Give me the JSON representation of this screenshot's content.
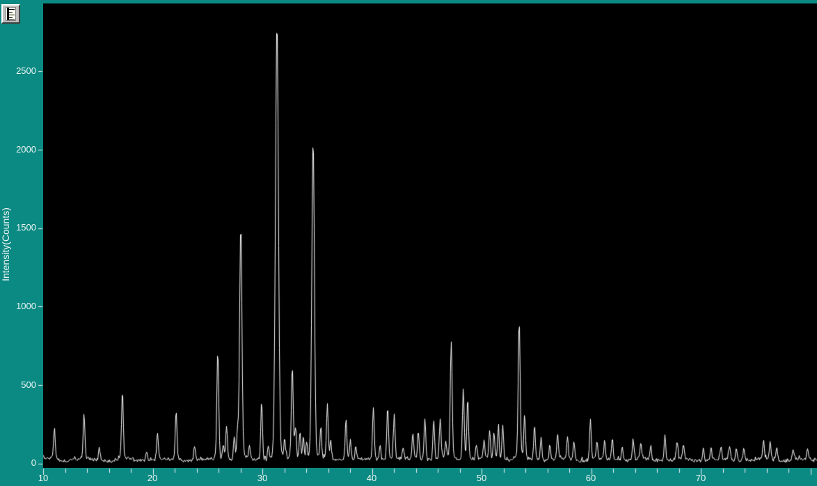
{
  "colors": {
    "background": "#0b8a83",
    "plot_background": "#000000",
    "trace": "#ffffff",
    "tick": "#f0f0f0",
    "label_text": "#eef6f4",
    "button_face": "#c0c0c0"
  },
  "toolbar": {
    "scale_button_icon": "ruler-icon"
  },
  "chart_data": {
    "type": "line",
    "title": "",
    "xlabel": "",
    "ylabel": "Intensity(Counts)",
    "xlim": [
      10,
      80.6
    ],
    "ylim": [
      0,
      2925
    ],
    "grid": false,
    "legend_position": "none",
    "x_tick_labels": [
      "10",
      "20",
      "30",
      "40",
      "50",
      "60",
      "70"
    ],
    "x_minor_tick_step": 2,
    "y_tick_labels": [
      "0",
      "500",
      "1000",
      "1500",
      "2000",
      "2500"
    ],
    "baseline_noise_counts": 30,
    "series_description": "powder XRD pattern, intensity vs two-theta (degrees)",
    "peaks": [
      [
        11.0,
        200
      ],
      [
        13.7,
        295
      ],
      [
        15.1,
        80
      ],
      [
        17.2,
        430
      ],
      [
        19.4,
        65
      ],
      [
        20.4,
        170
      ],
      [
        22.1,
        320
      ],
      [
        23.8,
        85
      ],
      [
        25.9,
        690
      ],
      [
        26.4,
        95
      ],
      [
        26.7,
        225
      ],
      [
        27.4,
        140
      ],
      [
        27.7,
        160
      ],
      [
        28.0,
        1500
      ],
      [
        28.8,
        90
      ],
      [
        29.9,
        380
      ],
      [
        30.5,
        90
      ],
      [
        31.3,
        2780
      ],
      [
        32.0,
        120
      ],
      [
        32.7,
        600
      ],
      [
        33.0,
        200
      ],
      [
        33.4,
        185
      ],
      [
        33.7,
        150
      ],
      [
        34.0,
        115
      ],
      [
        34.6,
        2050
      ],
      [
        35.3,
        205
      ],
      [
        35.9,
        340
      ],
      [
        36.2,
        120
      ],
      [
        37.6,
        270
      ],
      [
        38.0,
        130
      ],
      [
        38.5,
        85
      ],
      [
        40.1,
        340
      ],
      [
        40.7,
        100
      ],
      [
        41.4,
        350
      ],
      [
        42.0,
        290
      ],
      [
        42.8,
        80
      ],
      [
        43.7,
        170
      ],
      [
        44.2,
        185
      ],
      [
        44.8,
        270
      ],
      [
        45.6,
        250
      ],
      [
        46.2,
        255
      ],
      [
        46.7,
        115
      ],
      [
        47.2,
        760
      ],
      [
        48.3,
        465
      ],
      [
        48.7,
        390
      ],
      [
        49.5,
        100
      ],
      [
        50.2,
        115
      ],
      [
        50.7,
        185
      ],
      [
        51.1,
        165
      ],
      [
        51.5,
        210
      ],
      [
        51.9,
        225
      ],
      [
        53.4,
        880
      ],
      [
        53.9,
        275
      ],
      [
        54.8,
        215
      ],
      [
        55.4,
        145
      ],
      [
        56.2,
        105
      ],
      [
        56.9,
        155
      ],
      [
        57.8,
        145
      ],
      [
        58.4,
        115
      ],
      [
        59.9,
        255
      ],
      [
        60.5,
        125
      ],
      [
        61.2,
        105
      ],
      [
        61.9,
        145
      ],
      [
        62.8,
        95
      ],
      [
        63.8,
        135
      ],
      [
        64.5,
        105
      ],
      [
        65.4,
        95
      ],
      [
        66.7,
        160
      ],
      [
        67.8,
        120
      ],
      [
        68.4,
        95
      ],
      [
        70.2,
        75
      ],
      [
        70.9,
        85
      ],
      [
        71.8,
        80
      ],
      [
        72.6,
        85
      ],
      [
        73.2,
        80
      ],
      [
        73.9,
        80
      ],
      [
        75.7,
        115
      ],
      [
        76.3,
        120
      ],
      [
        76.9,
        95
      ],
      [
        78.4,
        70
      ],
      [
        79.7,
        75
      ]
    ]
  }
}
